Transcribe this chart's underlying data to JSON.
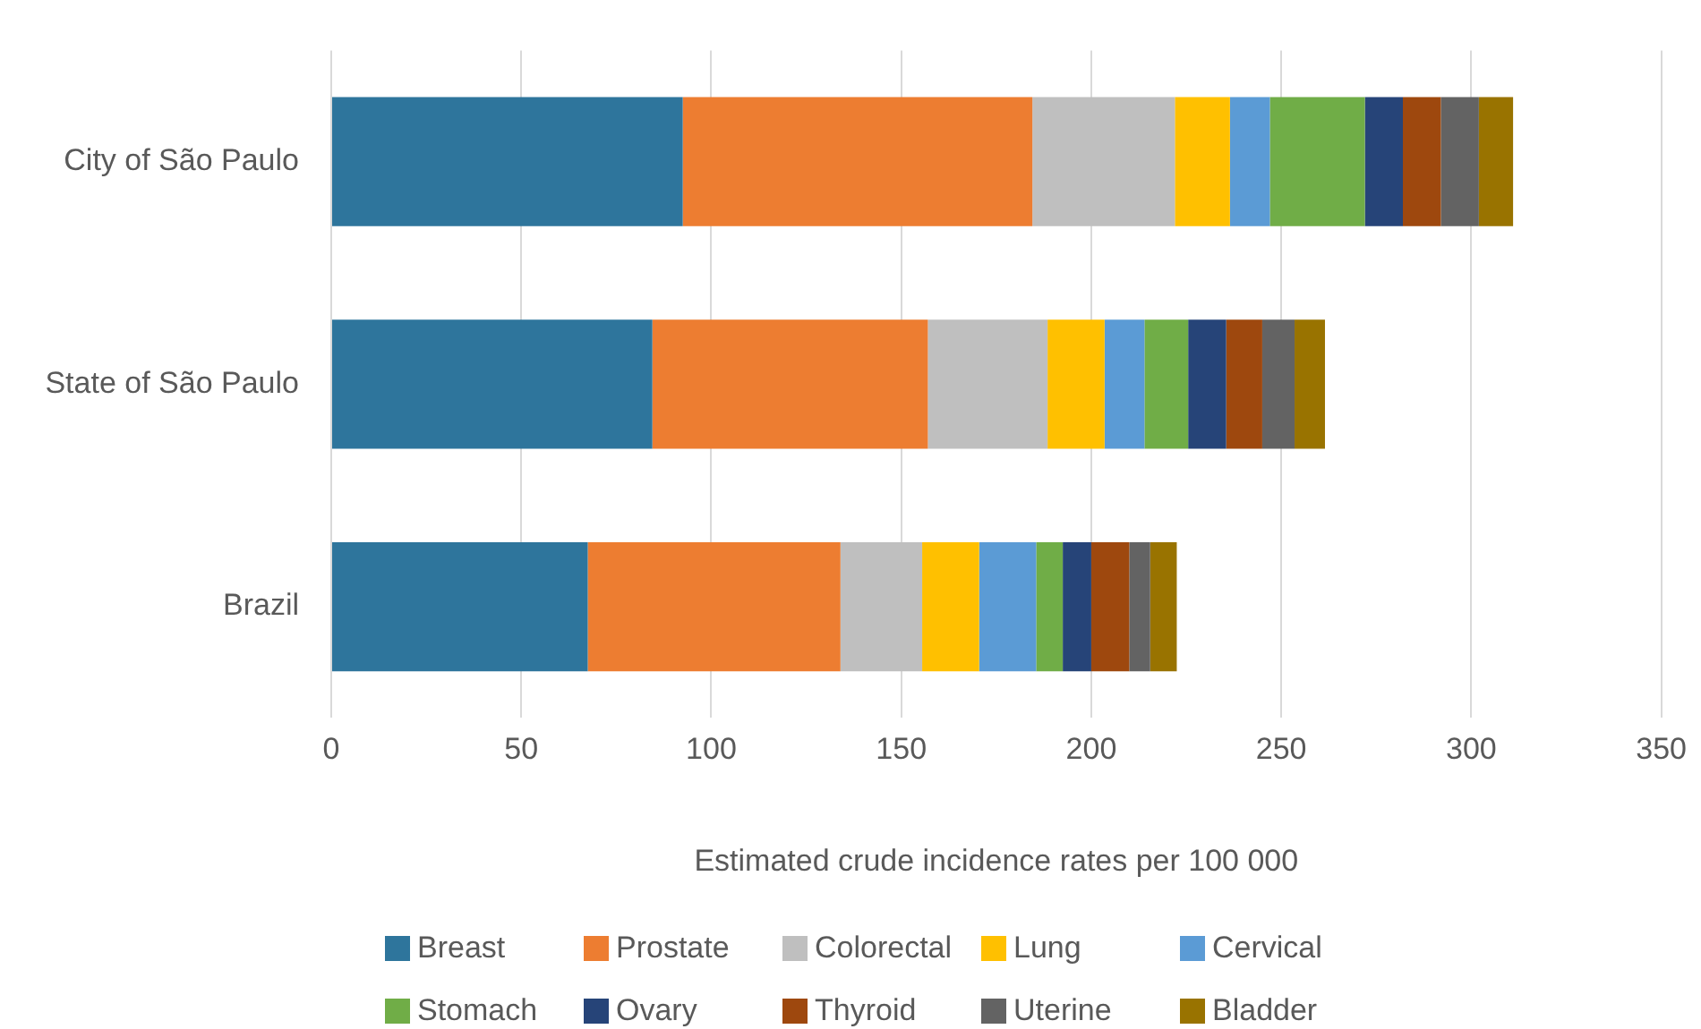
{
  "chart_data": {
    "type": "bar",
    "orientation": "horizontal",
    "stacked": true,
    "categories": [
      "City of São Paulo",
      "State of São Paulo",
      "Brazil"
    ],
    "xlabel": "Estimated crude incidence rates per 100 000",
    "xlim": [
      0,
      350
    ],
    "xticks": [
      0,
      50,
      100,
      150,
      200,
      250,
      300,
      350
    ],
    "grid": "x",
    "legend": "bottom",
    "series": [
      {
        "name": "Breast",
        "color": "#2e759c",
        "values": [
          92.5,
          84.5,
          67.5
        ]
      },
      {
        "name": "Prostate",
        "color": "#ed7d31",
        "values": [
          92,
          72.5,
          66.5
        ]
      },
      {
        "name": "Colorectal",
        "color": "#bfbfbf",
        "values": [
          37.5,
          31.5,
          21.5
        ]
      },
      {
        "name": "Lung",
        "color": "#ffc000",
        "values": [
          14.5,
          15,
          15
        ]
      },
      {
        "name": "Cervical",
        "color": "#5b9bd5",
        "values": [
          10.5,
          10.5,
          15
        ]
      },
      {
        "name": "Stomach",
        "color": "#70ad47",
        "values": [
          25,
          11.5,
          7
        ]
      },
      {
        "name": "Ovary",
        "color": "#264478",
        "values": [
          10,
          10,
          7.5
        ]
      },
      {
        "name": "Thyroid",
        "color": "#9e480e",
        "values": [
          10,
          9.5,
          10
        ]
      },
      {
        "name": "Uterine",
        "color": "#636363",
        "values": [
          10,
          8.5,
          5.5
        ]
      },
      {
        "name": "Bladder",
        "color": "#997300",
        "values": [
          9,
          8,
          7
        ]
      }
    ]
  }
}
